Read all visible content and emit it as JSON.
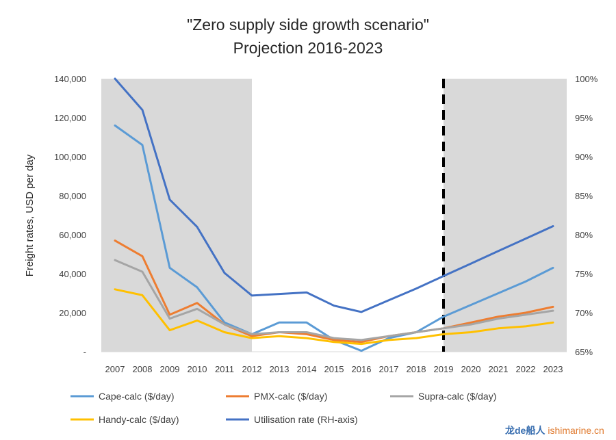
{
  "chart_data": {
    "type": "line",
    "title": "\"Zero supply side growth scenario\"",
    "subtitle": "Projection 2016-2023",
    "ylabel": "Freight rates, USD per day",
    "x": [
      "2007",
      "2008",
      "2009",
      "2010",
      "2011",
      "2012",
      "2013",
      "2014",
      "2015",
      "2016",
      "2017",
      "2018",
      "2019",
      "2020",
      "2021",
      "2022",
      "2023"
    ],
    "y_left": {
      "range": [
        0,
        140000
      ],
      "ticks": [
        0,
        20000,
        40000,
        60000,
        80000,
        100000,
        120000,
        140000
      ],
      "tick_labels": [
        "-",
        "20,000",
        "40,000",
        "60,000",
        "80,000",
        "100,000",
        "120,000",
        "140,000"
      ]
    },
    "y_right": {
      "range": [
        0.65,
        1.0
      ],
      "ticks": [
        0.65,
        0.7,
        0.75,
        0.8,
        0.85,
        0.9,
        0.95,
        1.0
      ],
      "tick_labels": [
        "65%",
        "70%",
        "75%",
        "80%",
        "85%",
        "90%",
        "95%",
        "100%"
      ]
    },
    "shaded_ranges": [
      [
        "2007",
        "2012"
      ],
      [
        "2019",
        "2023"
      ]
    ],
    "projection_marker": "2019",
    "series": [
      {
        "name": "Cape-calc ($/day)",
        "axis": "left",
        "color": "#5B9BD5",
        "values": [
          116000,
          106000,
          43000,
          33000,
          15000,
          9000,
          15000,
          15000,
          6000,
          500,
          7000,
          10000,
          18000,
          24000,
          30000,
          36000,
          43000
        ]
      },
      {
        "name": "PMX-calc ($/day)",
        "axis": "left",
        "color": "#ED7D31",
        "values": [
          57000,
          49000,
          19000,
          25000,
          14000,
          8000,
          10000,
          9000,
          6000,
          5000,
          8000,
          10000,
          12000,
          15000,
          18000,
          20000,
          23000
        ]
      },
      {
        "name": "Supra-calc ($/day)",
        "axis": "left",
        "color": "#A5A5A5",
        "values": [
          47000,
          41000,
          17000,
          22000,
          14000,
          9000,
          10000,
          10000,
          7000,
          6000,
          8000,
          10000,
          12000,
          14000,
          17000,
          19000,
          21000
        ]
      },
      {
        "name": "Handy-calc ($/day)",
        "axis": "left",
        "color": "#FFC000",
        "values": [
          32000,
          29000,
          11000,
          16000,
          10000,
          7000,
          8000,
          7000,
          5000,
          4000,
          6000,
          7000,
          9000,
          10000,
          12000,
          13000,
          15000
        ]
      },
      {
        "name": "Utilisation rate (RH-axis)",
        "axis": "right",
        "color": "#4472C4",
        "values": [
          1.0,
          0.96,
          0.845,
          0.81,
          0.751,
          0.722,
          0.724,
          0.726,
          0.709,
          0.701,
          0.716,
          0.731,
          0.747,
          0.763,
          0.779,
          0.795,
          0.811
        ]
      }
    ],
    "legend_position": "bottom"
  },
  "watermark": {
    "part1": "龙de船人",
    "part2": "ishimarine.cn"
  }
}
